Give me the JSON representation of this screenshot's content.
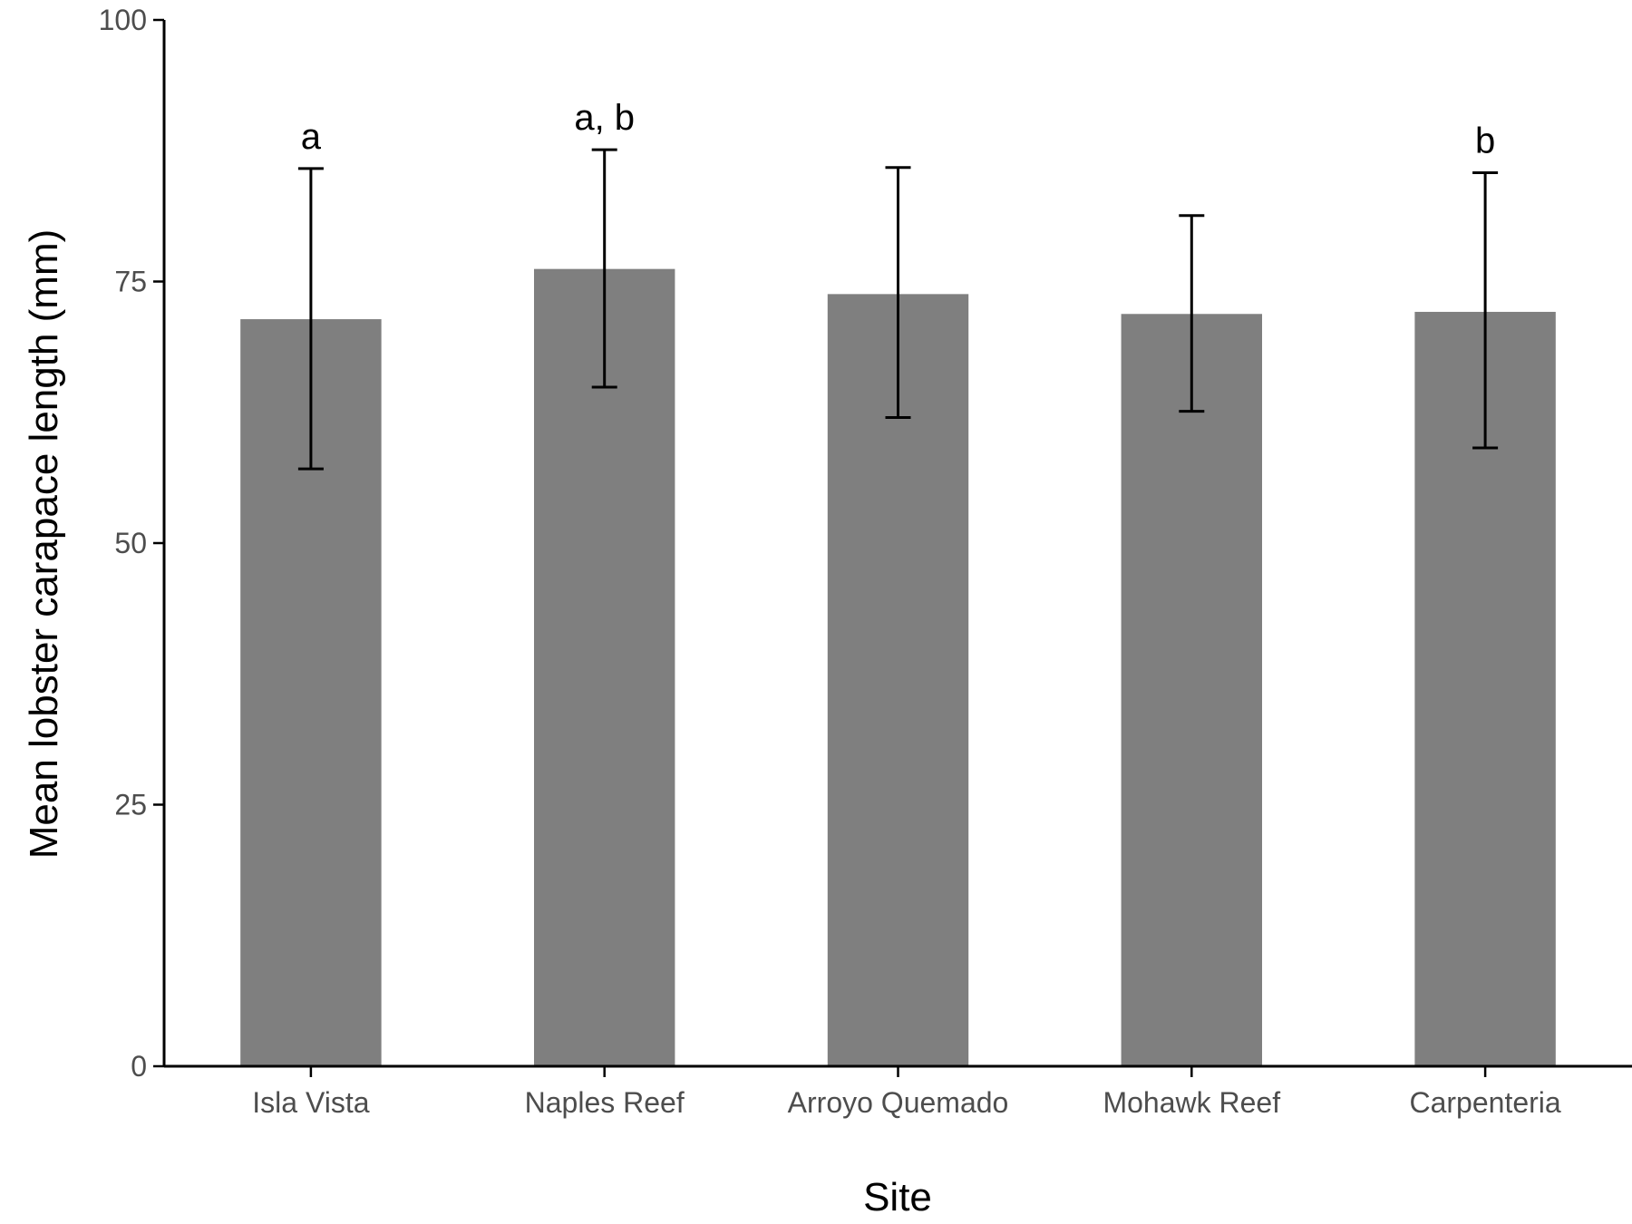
{
  "chart_data": {
    "type": "bar",
    "title": "",
    "xlabel": "Site",
    "ylabel": "Mean lobster carapace length (mm)",
    "categories": [
      "Isla Vista",
      "Naples Reef",
      "Arroyo Quemado",
      "Mohawk Reef",
      "Carpenteria"
    ],
    "values": [
      71.4,
      76.2,
      73.8,
      71.9,
      72.1
    ],
    "error_low": [
      57.1,
      64.9,
      62.0,
      62.6,
      59.1
    ],
    "error_high": [
      85.8,
      87.6,
      85.9,
      81.3,
      85.4
    ],
    "annotations": [
      "a",
      "a, b",
      "",
      "",
      "b"
    ],
    "ylim": [
      0,
      100
    ],
    "yticks": [
      0,
      25,
      50,
      75,
      100
    ],
    "grid": false,
    "legend": "none",
    "colors": {
      "bar": "#7f7f7f",
      "axis": "#000000",
      "errorbar": "#000000",
      "tick_text": "#4d4d4d"
    }
  }
}
